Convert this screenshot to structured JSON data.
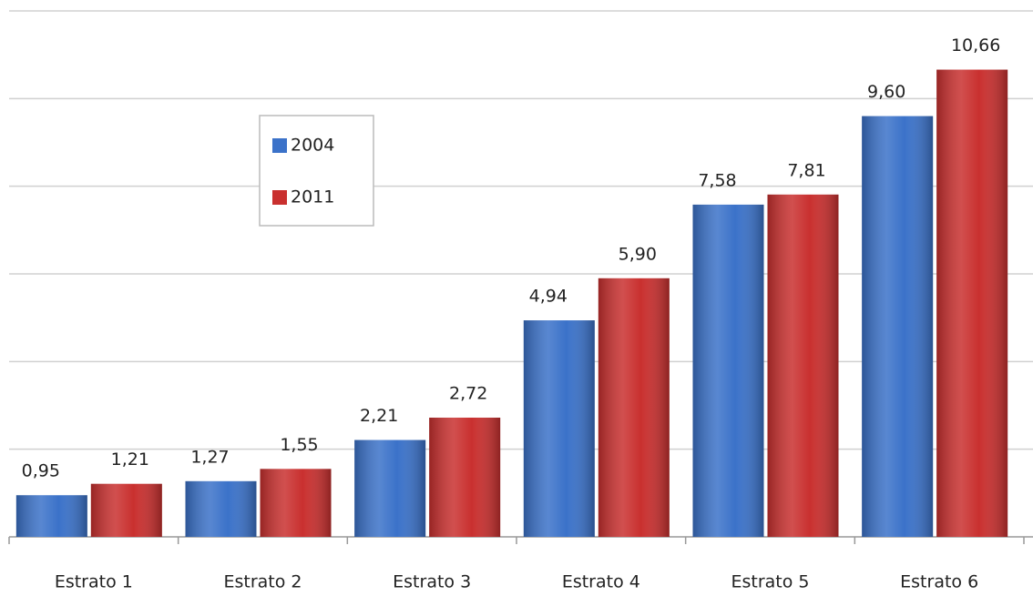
{
  "chart_data": {
    "type": "bar",
    "categories": [
      "Estrato 1",
      "Estrato 2",
      "Estrato 3",
      "Estrato 4",
      "Estrato 5",
      "Estrato 6"
    ],
    "series": [
      {
        "name": "2004",
        "color": "#3b72c9",
        "values": [
          0.95,
          1.27,
          2.21,
          4.94,
          7.58,
          9.6
        ],
        "value_labels": [
          "0,95",
          "1,27",
          "2,21",
          "4,94",
          "7,58",
          "9,60"
        ]
      },
      {
        "name": "2011",
        "color": "#c9302f",
        "values": [
          1.21,
          1.55,
          2.72,
          5.9,
          7.81,
          10.66
        ],
        "value_labels": [
          "1,21",
          "1,55",
          "2,72",
          "5,90",
          "7,81",
          "10,66"
        ]
      }
    ],
    "ylim": [
      0,
      12
    ],
    "yticks": [
      0,
      2,
      4,
      6,
      8,
      10,
      12
    ],
    "grid": true,
    "legend": "upper-left"
  }
}
